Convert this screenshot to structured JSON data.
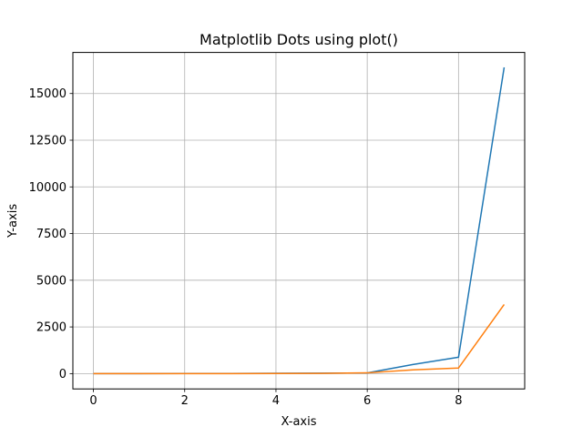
{
  "chart_data": {
    "type": "line",
    "title": "Matplotlib Dots using plot()",
    "xlabel": "X-axis",
    "ylabel": "Y-axis",
    "xlim": [
      -0.45,
      9.45
    ],
    "ylim": [
      -820,
      17200
    ],
    "xticks": [
      0,
      2,
      4,
      6,
      8
    ],
    "xtick_labels": [
      "0",
      "2",
      "4",
      "6",
      "8"
    ],
    "yticks": [
      0,
      2500,
      5000,
      7500,
      10000,
      12500,
      15000
    ],
    "ytick_labels": [
      "0",
      "2500",
      "5000",
      "7500",
      "10000",
      "12500",
      "15000"
    ],
    "grid": true,
    "x": [
      0,
      1,
      2,
      3,
      4,
      5,
      6,
      7,
      8,
      9
    ],
    "series": [
      {
        "color": "#1f77b4",
        "values": [
          0,
          1,
          4,
          9,
          16,
          25,
          36,
          490,
          880,
          16400
        ]
      },
      {
        "color": "#ff7f0e",
        "values": [
          0,
          1,
          2,
          3,
          5,
          15,
          40,
          200,
          300,
          3700
        ]
      }
    ]
  }
}
